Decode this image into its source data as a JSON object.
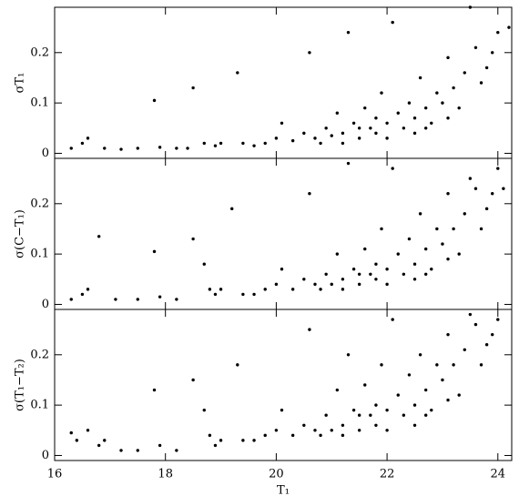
{
  "chart_data": [
    {
      "type": "scatter",
      "ylabel": "σT₁",
      "color": "#000000",
      "x": [
        16.3,
        16.5,
        16.6,
        16.9,
        17.2,
        17.5,
        17.8,
        17.9,
        18.2,
        18.4,
        18.5,
        18.7,
        18.9,
        19.0,
        19.3,
        19.4,
        19.6,
        19.8,
        20.0,
        20.1,
        20.3,
        20.5,
        20.6,
        20.7,
        20.9,
        21.0,
        21.1,
        21.2,
        21.3,
        21.4,
        21.5,
        21.6,
        21.7,
        21.8,
        21.9,
        22.0,
        22.0,
        22.1,
        22.2,
        22.3,
        22.4,
        22.5,
        22.6,
        22.7,
        22.8,
        22.9,
        23.0,
        23.1,
        23.2,
        23.3,
        23.4,
        23.5,
        23.6,
        23.7,
        23.8,
        23.9,
        24.0,
        24.2,
        22.5,
        21.8,
        21.2,
        22.7,
        23.1,
        20.8,
        21.5
      ],
      "y": [
        0.01,
        0.02,
        0.03,
        0.01,
        0.008,
        0.01,
        0.105,
        0.012,
        0.01,
        0.01,
        0.13,
        0.02,
        0.015,
        0.02,
        0.16,
        0.02,
        0.015,
        0.02,
        0.03,
        0.06,
        0.025,
        0.04,
        0.2,
        0.03,
        0.05,
        0.035,
        0.08,
        0.04,
        0.24,
        0.06,
        0.03,
        0.09,
        0.05,
        0.04,
        0.12,
        0.06,
        0.03,
        0.26,
        0.08,
        0.05,
        0.1,
        0.07,
        0.15,
        0.09,
        0.06,
        0.12,
        0.1,
        0.19,
        0.13,
        0.09,
        0.16,
        0.29,
        0.21,
        0.14,
        0.17,
        0.2,
        0.24,
        0.25,
        0.04,
        0.07,
        0.02,
        0.05,
        0.07,
        0.02,
        0.05
      ],
      "xlim": [
        16,
        24.25
      ],
      "xticks": [
        16,
        18,
        20,
        22,
        24
      ],
      "ylim": [
        -0.01,
        0.29
      ],
      "yticks": [
        0,
        0.1,
        0.2
      ]
    },
    {
      "type": "scatter",
      "ylabel": "σ(C−T₁)",
      "color": "#000000",
      "x": [
        16.3,
        16.5,
        16.6,
        16.8,
        17.1,
        17.5,
        17.8,
        17.9,
        18.2,
        18.5,
        18.7,
        18.8,
        18.9,
        19.0,
        19.2,
        19.4,
        19.6,
        19.8,
        20.0,
        20.1,
        20.3,
        20.5,
        20.6,
        20.7,
        20.9,
        21.0,
        21.1,
        21.2,
        21.3,
        21.4,
        21.5,
        21.6,
        21.7,
        21.8,
        21.9,
        22.0,
        22.0,
        22.1,
        22.2,
        22.3,
        22.4,
        22.5,
        22.6,
        22.7,
        22.8,
        22.9,
        23.0,
        23.1,
        23.2,
        23.3,
        23.4,
        23.5,
        23.6,
        23.7,
        23.8,
        23.9,
        24.0,
        24.1,
        22.5,
        21.8,
        21.2,
        22.7,
        23.1,
        20.8,
        21.5
      ],
      "y": [
        0.01,
        0.02,
        0.03,
        0.135,
        0.01,
        0.01,
        0.105,
        0.015,
        0.01,
        0.13,
        0.08,
        0.03,
        0.02,
        0.03,
        0.19,
        0.02,
        0.02,
        0.03,
        0.04,
        0.07,
        0.03,
        0.05,
        0.22,
        0.04,
        0.06,
        0.04,
        0.1,
        0.05,
        0.28,
        0.07,
        0.04,
        0.11,
        0.06,
        0.05,
        0.15,
        0.07,
        0.04,
        0.27,
        0.1,
        0.06,
        0.13,
        0.08,
        0.18,
        0.11,
        0.07,
        0.15,
        0.12,
        0.22,
        0.15,
        0.1,
        0.18,
        0.25,
        0.23,
        0.15,
        0.19,
        0.22,
        0.27,
        0.23,
        0.05,
        0.08,
        0.03,
        0.06,
        0.09,
        0.03,
        0.06
      ],
      "xlim": [
        16,
        24.25
      ],
      "xticks": [
        16,
        18,
        20,
        22,
        24
      ],
      "ylim": [
        -0.01,
        0.29
      ],
      "yticks": [
        0,
        0.1,
        0.2
      ]
    },
    {
      "type": "scatter",
      "ylabel": "σ(T₁−T₂)",
      "xlabel": "T₁",
      "color": "#000000",
      "x": [
        16.3,
        16.4,
        16.6,
        16.8,
        17.2,
        17.5,
        17.8,
        17.9,
        18.2,
        18.5,
        18.7,
        18.8,
        18.9,
        19.0,
        19.3,
        19.4,
        19.6,
        19.8,
        20.0,
        20.1,
        20.3,
        20.5,
        20.6,
        20.7,
        20.9,
        21.0,
        21.1,
        21.2,
        21.3,
        21.4,
        21.5,
        21.6,
        21.7,
        21.8,
        21.9,
        22.0,
        22.0,
        22.1,
        22.2,
        22.3,
        22.4,
        22.5,
        22.6,
        22.7,
        22.8,
        22.9,
        23.0,
        23.1,
        23.2,
        23.3,
        23.4,
        23.5,
        23.6,
        23.7,
        23.8,
        23.9,
        24.0,
        22.5,
        21.8,
        21.2,
        22.7,
        23.1,
        20.8,
        21.5,
        16.9
      ],
      "y": [
        0.045,
        0.03,
        0.05,
        0.02,
        0.01,
        0.01,
        0.13,
        0.02,
        0.01,
        0.15,
        0.09,
        0.04,
        0.02,
        0.03,
        0.18,
        0.03,
        0.03,
        0.04,
        0.05,
        0.09,
        0.04,
        0.06,
        0.25,
        0.05,
        0.08,
        0.05,
        0.13,
        0.06,
        0.2,
        0.09,
        0.05,
        0.14,
        0.08,
        0.06,
        0.18,
        0.09,
        0.05,
        0.27,
        0.12,
        0.08,
        0.16,
        0.1,
        0.2,
        0.13,
        0.09,
        0.18,
        0.15,
        0.24,
        0.18,
        0.12,
        0.21,
        0.28,
        0.26,
        0.18,
        0.22,
        0.24,
        0.27,
        0.06,
        0.1,
        0.04,
        0.08,
        0.11,
        0.04,
        0.08,
        0.03
      ],
      "xlim": [
        16,
        24.25
      ],
      "xticks": [
        16,
        18,
        20,
        22,
        24
      ],
      "ylim": [
        -0.01,
        0.29
      ],
      "yticks": [
        0,
        0.1,
        0.2
      ]
    }
  ]
}
